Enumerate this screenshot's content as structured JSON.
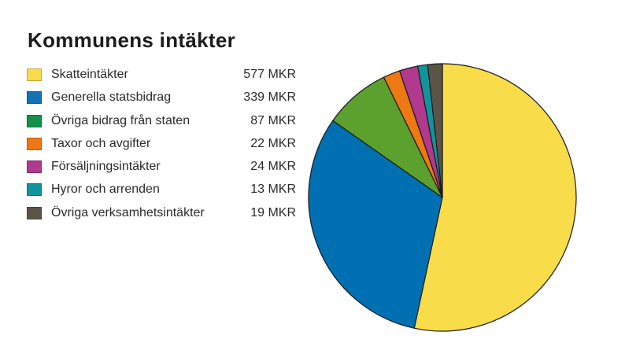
{
  "page": {
    "title": "Kommunens intäkter",
    "background": "#ffffff"
  },
  "chart_data": {
    "type": "pie",
    "title": "Kommunens intäkter",
    "unit": "MKR",
    "total": 1081,
    "direction": "clockwise",
    "start_angle": "12-oclock",
    "legend_position": "left",
    "stroke_color": "#1a1a1a",
    "segments": [
      {
        "label": "Skatteintäkter",
        "value": 577,
        "value_label": "577 MKR",
        "color": "#F8DC49",
        "swatch_color": "#F8DC49"
      },
      {
        "label": "Generella statsbidrag",
        "value": 339,
        "value_label": "339 MKR",
        "color": "#0070B2",
        "swatch_color": "#1272B5"
      },
      {
        "label": "Övriga bidrag från staten",
        "value": 87,
        "value_label": "87 MKR",
        "color": "#5CA02E",
        "swatch_color": "#13914A"
      },
      {
        "label": "Taxor och avgifter",
        "value": 22,
        "value_label": "22 MKR",
        "color": "#EE7814",
        "swatch_color": "#EE7814"
      },
      {
        "label": "Försäljningsintäkter",
        "value": 24,
        "value_label": "24 MKR",
        "color": "#B1398E",
        "swatch_color": "#B1398E"
      },
      {
        "label": "Hyror och arrenden",
        "value": 13,
        "value_label": "13 MKR",
        "color": "#12949C",
        "swatch_color": "#12949C"
      },
      {
        "label": "Övriga verksamhetsintäkter",
        "value": 19,
        "value_label": "19 MKR",
        "color": "#5C5547",
        "swatch_color": "#5C5547"
      }
    ]
  }
}
